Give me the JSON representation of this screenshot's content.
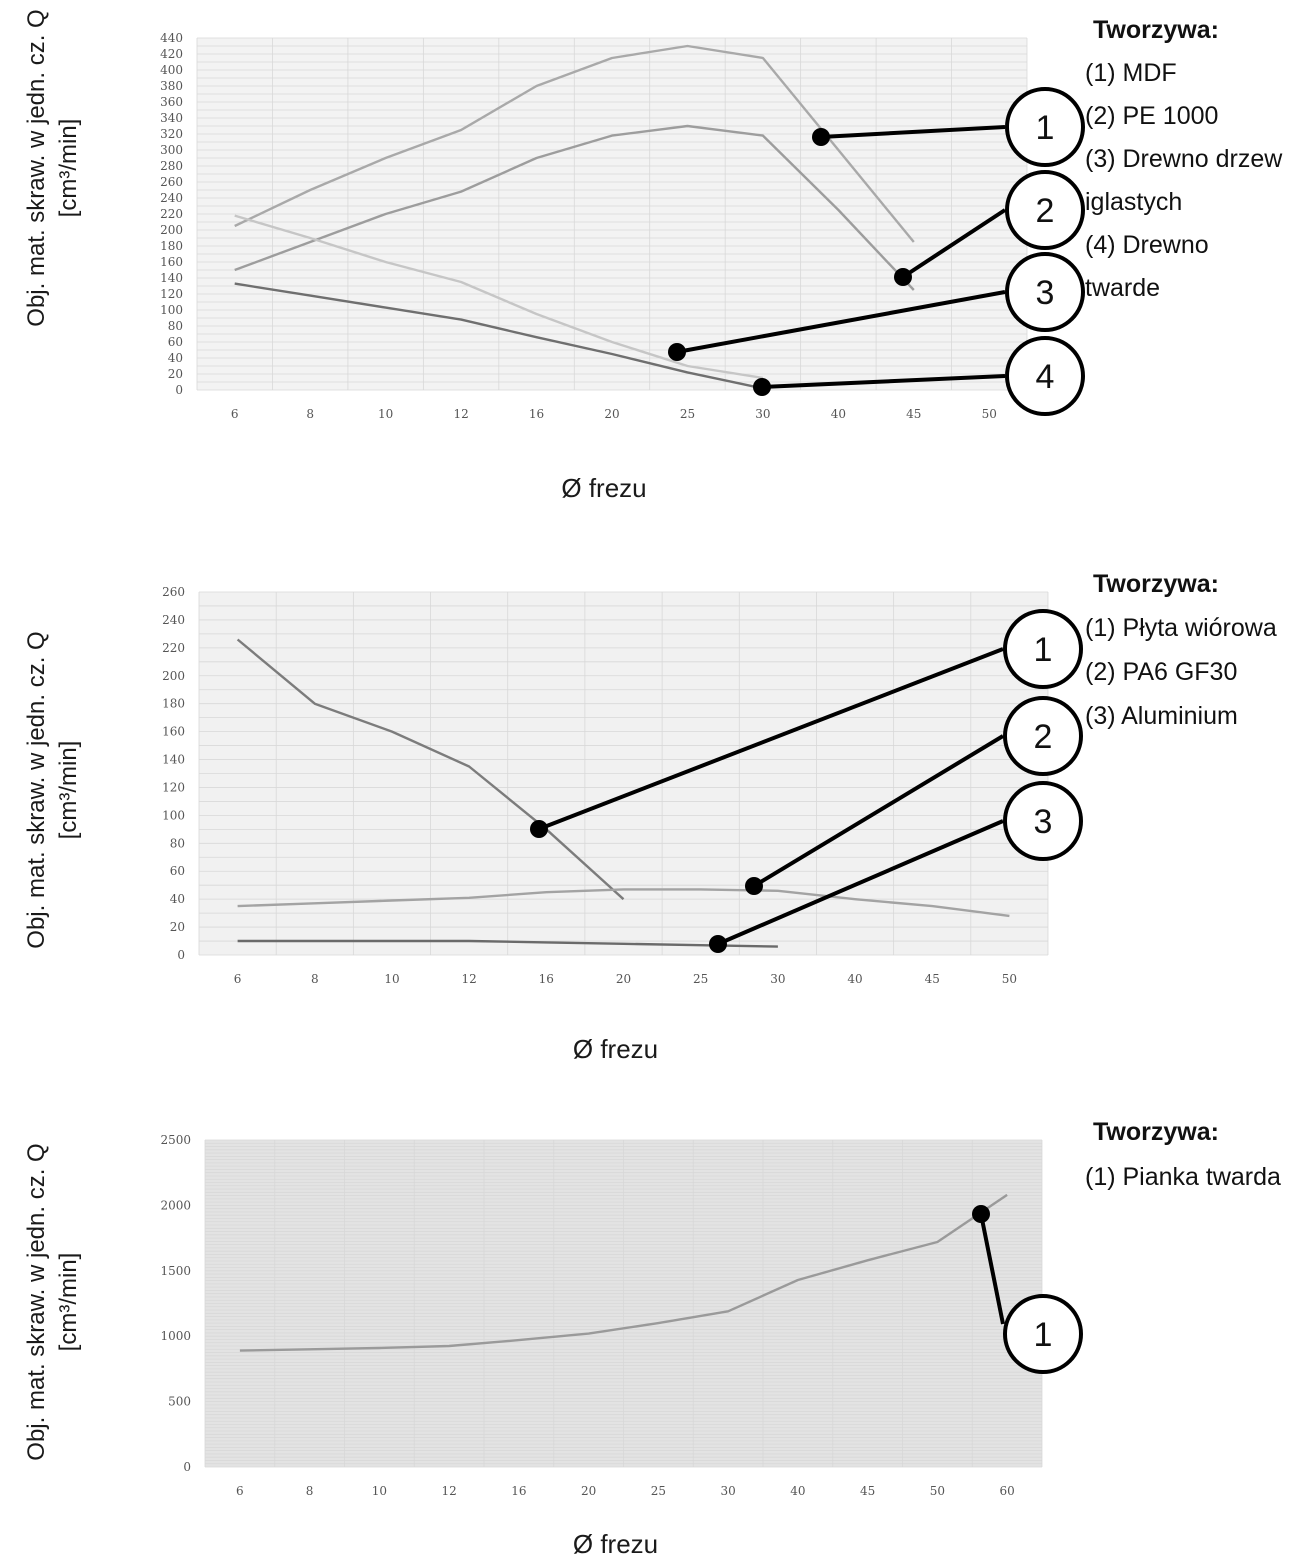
{
  "chart_data": [
    {
      "type": "line",
      "x": [
        "6",
        "8",
        "10",
        "12",
        "16",
        "20",
        "25",
        "30",
        "40",
        "45",
        "50"
      ],
      "ylabel": "Obj. mat. skraw. w jedn. cz. Q",
      "ylabel_unit": "[cm³/min]",
      "xlabel": "Ø frezu",
      "ylim": [
        0,
        440
      ],
      "yticks": [
        0,
        20,
        40,
        60,
        80,
        100,
        120,
        140,
        160,
        180,
        200,
        220,
        240,
        260,
        280,
        300,
        320,
        340,
        360,
        380,
        400,
        420,
        440
      ],
      "grid": true,
      "series": [
        {
          "callout": "1",
          "color": "#a9a9a9",
          "values": [
            205,
            250,
            290,
            325,
            380,
            415,
            430,
            415,
            300,
            185,
            null
          ]
        },
        {
          "callout": "2",
          "color": "#9d9d9d",
          "values": [
            150,
            185,
            220,
            248,
            290,
            318,
            330,
            318,
            225,
            125,
            null
          ]
        },
        {
          "callout": "3",
          "color": "#c6c6c6",
          "values": [
            218,
            190,
            160,
            135,
            95,
            60,
            30,
            15,
            null,
            null,
            null
          ]
        },
        {
          "callout": "4",
          "color": "#6f6f6f",
          "values": [
            133,
            118,
            103,
            88,
            66,
            45,
            22,
            2,
            null,
            null,
            null
          ]
        }
      ],
      "legend": {
        "title": "Tworzywa:",
        "lines": [
          "(1) MDF",
          "(2) PE 1000",
          "(3) Drewno drzew",
          "iglastych",
          "(4) Drewno",
          "twarde"
        ]
      }
    },
    {
      "type": "line",
      "x": [
        "6",
        "8",
        "10",
        "12",
        "16",
        "20",
        "25",
        "30",
        "40",
        "45",
        "50"
      ],
      "ylabel": "Obj. mat. skraw. w jedn. cz. Q",
      "ylabel_unit": "[cm³/min]",
      "xlabel": "Ø frezu",
      "ylim": [
        0,
        260
      ],
      "yticks": [
        0,
        20,
        40,
        60,
        80,
        100,
        120,
        140,
        160,
        180,
        200,
        220,
        240,
        260
      ],
      "grid": true,
      "series": [
        {
          "callout": "1",
          "color": "#7c7c7c",
          "values": [
            226,
            180,
            160,
            135,
            90,
            40,
            null,
            null,
            null,
            null,
            null
          ]
        },
        {
          "callout": "2",
          "color": "#a3a3a3",
          "values": [
            35,
            37,
            39,
            41,
            45,
            47,
            47,
            46,
            40,
            35,
            28
          ]
        },
        {
          "callout": "3",
          "color": "#6a6a6a",
          "values": [
            10,
            10,
            10,
            10,
            9,
            8,
            7,
            6,
            null,
            null,
            null
          ]
        }
      ],
      "legend": {
        "title": "Tworzywa:",
        "lines": [
          "(1) Płyta wiórowa",
          "(2) PA6 GF30",
          "(3) Aluminium"
        ]
      }
    },
    {
      "type": "line",
      "x": [
        "6",
        "8",
        "10",
        "12",
        "16",
        "20",
        "25",
        "30",
        "40",
        "45",
        "50",
        "60"
      ],
      "ylabel": "Obj. mat. skraw. w jedn. cz. Q",
      "ylabel_unit": "[cm³/min]",
      "xlabel": "Ø frezu",
      "ylim": [
        0,
        2500
      ],
      "yticks": [
        0,
        500,
        1000,
        1500,
        2000,
        2500
      ],
      "grid": true,
      "series": [
        {
          "callout": "1",
          "color": "#9a9a9a",
          "values": [
            890,
            900,
            910,
            925,
            970,
            1020,
            1100,
            1190,
            1430,
            1580,
            1720,
            2080
          ]
        }
      ],
      "legend": {
        "title": "Tworzywa:",
        "lines": [
          "(1) Pianka twarda"
        ]
      }
    }
  ]
}
